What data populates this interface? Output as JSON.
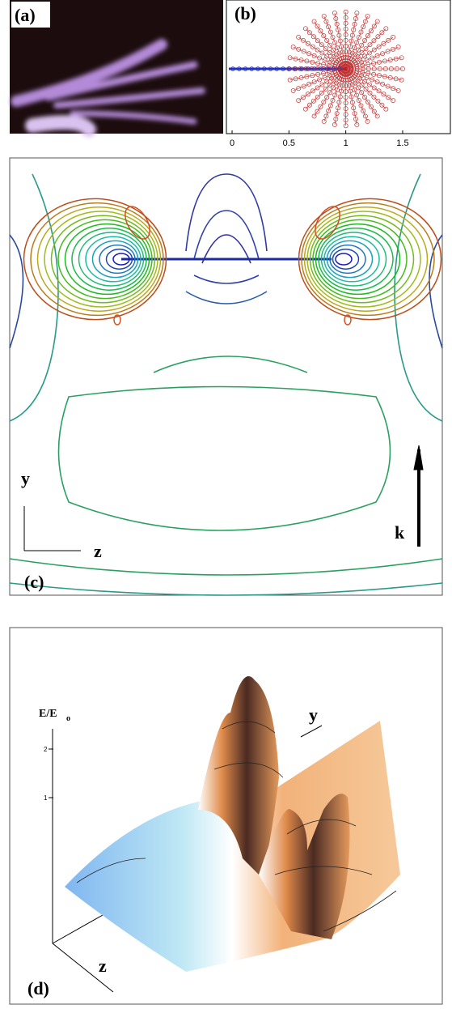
{
  "panels": [
    {
      "label": "(a)"
    },
    {
      "label": "(b)",
      "xlim": [
        -0.05,
        1.92
      ],
      "xticks": [
        0,
        0.5,
        1,
        1.5
      ]
    },
    {
      "label": "(c)",
      "axis_labels": {
        "y": "y",
        "z": "z"
      },
      "vector_label": "k"
    },
    {
      "label": "(d)",
      "axis_label": "E/E",
      "axis_label_subscript": "o",
      "ticks": [
        1,
        2
      ],
      "axis_labels": {
        "y": "y",
        "z": "z"
      }
    }
  ]
}
